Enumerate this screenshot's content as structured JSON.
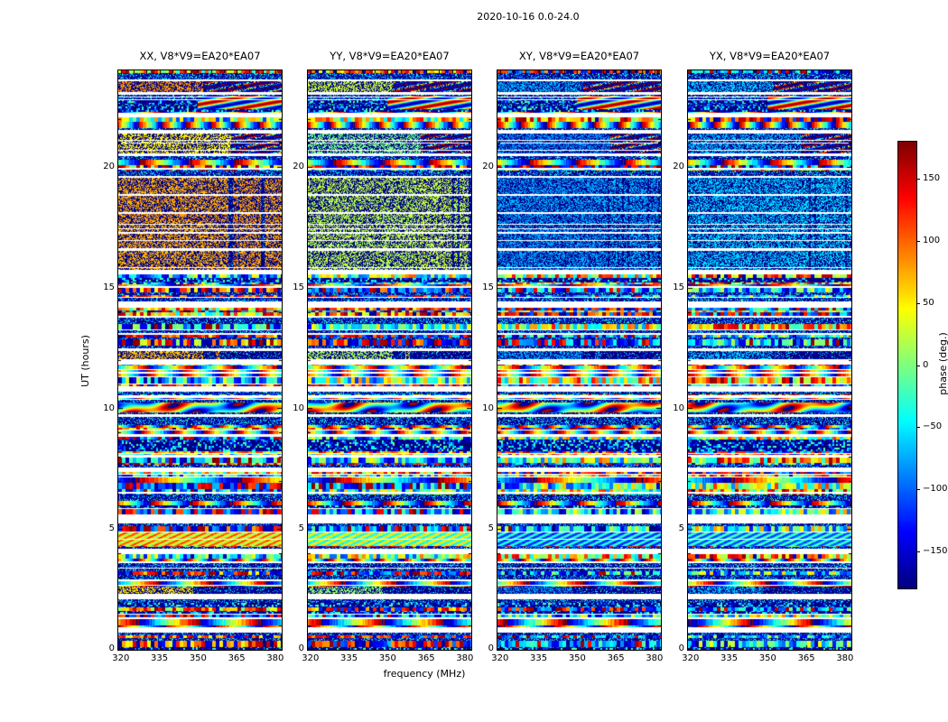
{
  "figure": {
    "title": "2020-10-16 0.0-24.0"
  },
  "chart_data": {
    "type": "heatmap",
    "title": "2020-10-16 0.0-24.0",
    "subplot_grid": "1x4",
    "xlabel": "frequency (MHz)",
    "ylabel": "UT (hours)",
    "x_range_mhz": [
      319,
      382.5
    ],
    "y_range_hours": [
      0,
      24
    ],
    "xtick_values": [
      320,
      335,
      350,
      365,
      380
    ],
    "xtick_labels": [
      "320",
      "335",
      "350",
      "365",
      "380"
    ],
    "ytick_values": [
      0,
      5,
      10,
      15,
      20
    ],
    "ytick_labels": [
      "0",
      "5",
      "10",
      "15",
      "20"
    ],
    "colorbar": {
      "label": "phase (deg.)",
      "colormap": "jet",
      "range_deg": [
        -180,
        180
      ],
      "tick_values": [
        150,
        100,
        50,
        0,
        -50,
        -100,
        -150
      ],
      "tick_labels": [
        "150",
        "100",
        "50",
        "0",
        "−50",
        "−100",
        "−150"
      ]
    },
    "panels": [
      {
        "title": "XX, V8*V9=EA20*EA07",
        "polarization": "XX",
        "baseline": "V8*V9=EA20*EA07"
      },
      {
        "title": "YY, V8*V9=EA20*EA07",
        "polarization": "YY",
        "baseline": "V8*V9=EA20*EA07"
      },
      {
        "title": "XY, V8*V9=EA20*EA07",
        "polarization": "XY",
        "baseline": "V8*V9=EA20*EA07"
      },
      {
        "title": "YX, V8*V9=EA20*EA07",
        "polarization": "YX",
        "baseline": "V8*V9=EA20*EA07"
      }
    ],
    "coherent_blocks": [
      {
        "ut_hours": [
          15.74,
          19.54
        ],
        "freq_mhz": [
          319,
          361.5
        ],
        "phase_deg_per_panel": [
          88,
          35,
          -60,
          -45
        ],
        "noise_deg": 7,
        "right_region": "striped-noise",
        "strips_mhz": [
          [
            363.5,
            365.5
          ],
          [
            370.5,
            372.0
          ]
        ]
      },
      {
        "ut_hours": [
          20.55,
          21.37
        ],
        "freq_mhz": [
          319,
          363.0
        ],
        "phase_deg_per_panel": [
          62,
          12,
          -68,
          -52
        ],
        "noise_deg": 7,
        "right_region": "swirl",
        "strips_mhz": []
      },
      {
        "ut_hours": [
          23.11,
          23.55
        ],
        "freq_mhz": [
          319,
          352.0
        ],
        "phase_deg_per_panel": [
          95,
          40,
          -55,
          -45
        ],
        "noise_deg": 7,
        "right_region": "swirl",
        "strips_mhz": []
      },
      {
        "ut_hours": [
          12.02,
          12.38
        ],
        "freq_mhz": [
          319,
          352.0
        ],
        "phase_deg_per_panel": [
          80,
          30,
          -58,
          -48
        ],
        "noise_deg": 8,
        "right_region": "noise",
        "strips_mhz": [
          [
            357.0,
            358.5
          ]
        ]
      },
      {
        "ut_hours": [
          2.32,
          2.6
        ],
        "freq_mhz": [
          319,
          348.0
        ],
        "phase_deg_per_panel": [
          70,
          25,
          -60,
          -50
        ],
        "noise_deg": 10,
        "right_region": "noise",
        "strips_mhz": []
      }
    ],
    "hatch_band": {
      "ut_hours": [
        4.3,
        4.85
      ],
      "base_phase_deg_per_panel": [
        75,
        20,
        -60,
        -50
      ],
      "amp_deg": 55
    },
    "swirl_band": {
      "ut_hours": [
        22.4,
        22.95
      ],
      "freq_start_mhz": 350,
      "amp_deg": 170
    },
    "smooth_band": {
      "ut_hours": [
        9.85,
        10.25
      ],
      "amp_deg": 140
    },
    "data_gaps_ut_hours": [
      [
        0.7,
        0.95
      ],
      [
        1.28,
        1.36
      ],
      [
        2.08,
        2.3
      ],
      [
        2.83,
        2.93
      ],
      [
        3.58,
        3.66
      ],
      [
        3.98,
        4.18
      ],
      [
        5.25,
        5.6
      ],
      [
        6.45,
        6.54
      ],
      [
        7.35,
        7.55
      ],
      [
        7.98,
        8.08
      ],
      [
        8.84,
        8.94
      ],
      [
        9.64,
        9.74
      ],
      [
        10.44,
        10.53
      ],
      [
        10.7,
        10.92
      ],
      [
        11.44,
        11.53
      ],
      [
        11.8,
        12.02
      ],
      [
        12.38,
        12.47
      ],
      [
        13.04,
        13.13
      ],
      [
        13.74,
        13.84
      ],
      [
        14.18,
        14.42
      ],
      [
        14.99,
        15.08
      ],
      [
        15.55,
        15.74
      ],
      [
        16.54,
        16.62
      ],
      [
        17.24,
        17.32
      ],
      [
        18.04,
        18.12
      ],
      [
        18.79,
        18.87
      ],
      [
        19.54,
        19.62
      ],
      [
        19.9,
        19.98
      ],
      [
        20.44,
        20.55
      ],
      [
        21.37,
        21.52
      ],
      [
        22.08,
        22.24
      ],
      [
        22.98,
        23.11
      ],
      [
        23.55,
        23.62
      ]
    ],
    "noise_seed": 20201016
  }
}
